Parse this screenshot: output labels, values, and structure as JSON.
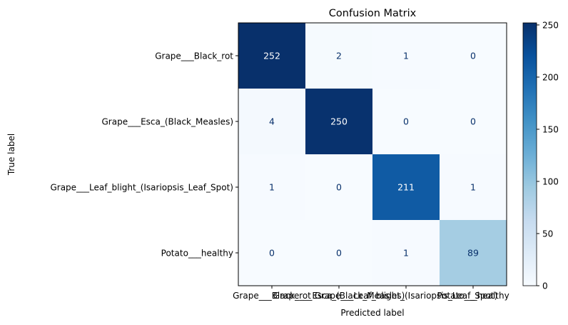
{
  "chart_data": {
    "type": "heatmap",
    "title": "Confusion Matrix",
    "xlabel": "Predicted label",
    "ylabel": "True label",
    "row_labels": [
      "Grape___Black_rot",
      "Grape___Esca_(Black_Measles)",
      "Grape___Leaf_blight_(Isariopsis_Leaf_Spot)",
      "Potato___healthy"
    ],
    "col_labels": [
      "Grape___Black_rot",
      "Grape___Esca_(Black_Measles)",
      "Grape___Leaf_blight_(Isariopsis_Leaf_Spot)",
      "Potato___healthy"
    ],
    "matrix": [
      [
        252,
        2,
        1,
        0
      ],
      [
        4,
        250,
        0,
        0
      ],
      [
        1,
        0,
        211,
        1
      ],
      [
        0,
        0,
        1,
        89
      ]
    ],
    "colormap": "Blues",
    "value_range": [
      0,
      252
    ],
    "colorbar_ticks": [
      0,
      50,
      100,
      150,
      200,
      250
    ],
    "grid": false
  }
}
